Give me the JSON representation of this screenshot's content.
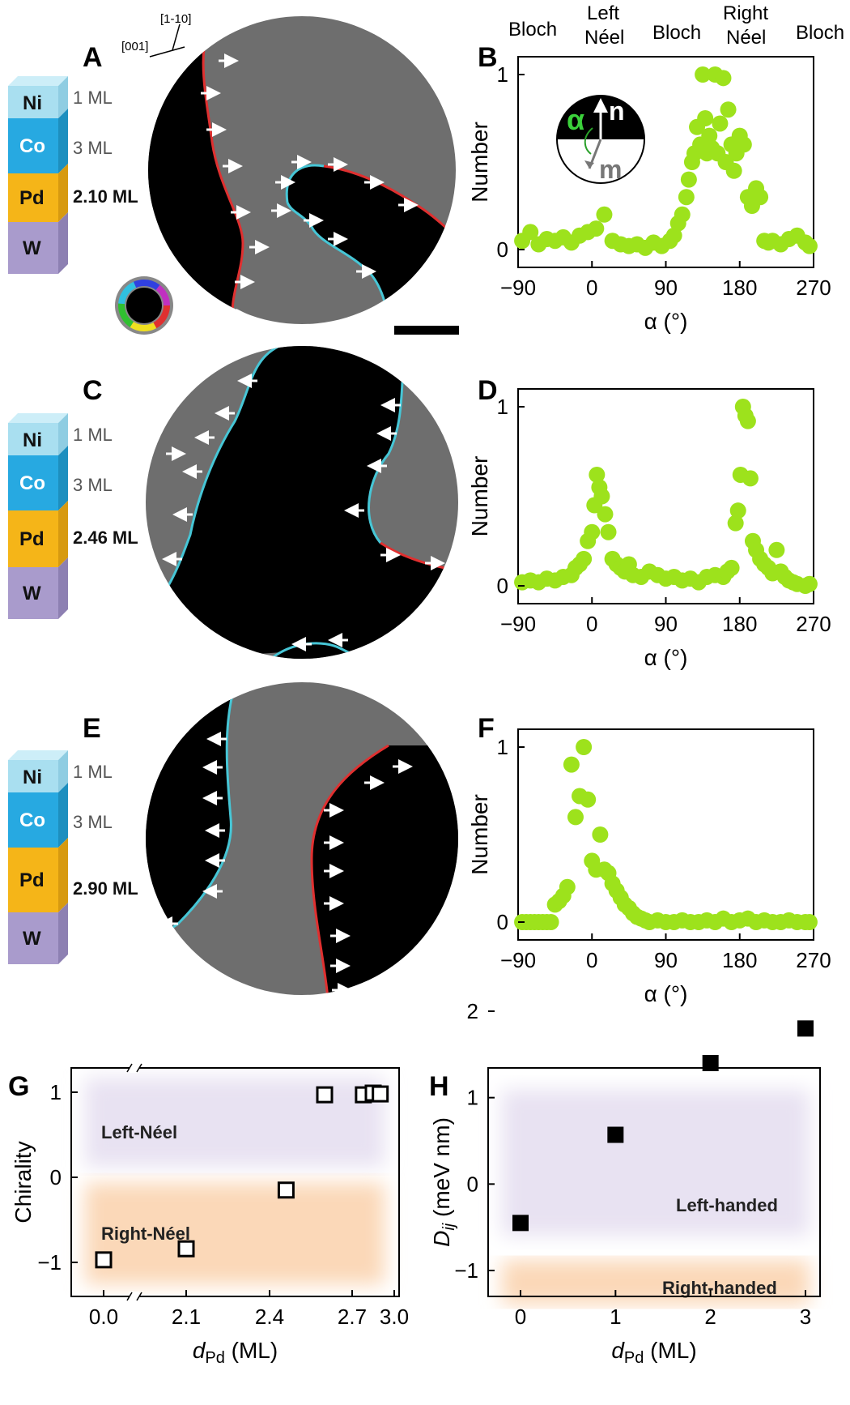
{
  "panels": {
    "A": {
      "letter": "A",
      "pd": "2.10 ML",
      "axis1": "[001]",
      "axis2": "[1-10]"
    },
    "C": {
      "letter": "C",
      "pd": "2.46 ML"
    },
    "E": {
      "letter": "E",
      "pd": "2.90 ML"
    },
    "stack": {
      "ni": "Ni",
      "co": "Co",
      "pd": "Pd",
      "w": "W",
      "ni_ml": "1 ML",
      "co_ml": "3 ML"
    },
    "B": {
      "letter": "B"
    },
    "D": {
      "letter": "D"
    },
    "F": {
      "letter": "F"
    },
    "G": {
      "letter": "G"
    },
    "H": {
      "letter": "H"
    }
  },
  "top_labels": {
    "bloch1": "Bloch",
    "left1": "Left",
    "left2": "Néel",
    "bloch2": "Bloch",
    "right1": "Right",
    "right2": "Néel",
    "bloch3": "Bloch"
  },
  "inset": {
    "alpha": "α",
    "n": "n",
    "m": "m"
  },
  "hist_axes": {
    "ylabel": "Number",
    "xlabel": "α (°)",
    "xticks": [
      "−90",
      "0",
      "90",
      "180",
      "270"
    ],
    "yticks": [
      "0",
      "1"
    ]
  },
  "colors": {
    "green": "#9de21c",
    "cyan": "#46c6d6",
    "red": "#e03030",
    "gray": "#6e6e6e",
    "ni": "#a9dff0",
    "co": "#27a9e1",
    "pd": "#f5b518",
    "w": "#a99bcc",
    "leftband": "#e8e2f2",
    "rightband": "#fbd8b8"
  },
  "chart_data": [
    {
      "type": "scatter",
      "panel": "B",
      "xlabel": "α (°)",
      "ylabel": "Number",
      "xlim": [
        -90,
        270
      ],
      "ylim": [
        0,
        1
      ],
      "x": [
        -85,
        -75,
        -65,
        -55,
        -45,
        -35,
        -25,
        -15,
        -5,
        5,
        15,
        25,
        35,
        45,
        55,
        65,
        75,
        85,
        95,
        100,
        105,
        110,
        115,
        118,
        122,
        125,
        128,
        132,
        135,
        138,
        140,
        143,
        146,
        150,
        153,
        156,
        160,
        163,
        166,
        170,
        173,
        176,
        180,
        185,
        190,
        195,
        200,
        205,
        210,
        215,
        220,
        230,
        240,
        250,
        260,
        265
      ],
      "y": [
        0.05,
        0.1,
        0.03,
        0.06,
        0.05,
        0.07,
        0.04,
        0.08,
        0.1,
        0.12,
        0.2,
        0.05,
        0.03,
        0.02,
        0.03,
        0.01,
        0.04,
        0.02,
        0.05,
        0.08,
        0.15,
        0.2,
        0.3,
        0.4,
        0.5,
        0.55,
        0.7,
        0.6,
        1.0,
        0.75,
        0.55,
        0.65,
        0.58,
        1.0,
        0.55,
        0.72,
        0.98,
        0.5,
        0.8,
        0.6,
        0.45,
        0.55,
        0.65,
        0.6,
        0.3,
        0.25,
        0.35,
        0.3,
        0.05,
        0.04,
        0.05,
        0.03,
        0.06,
        0.08,
        0.04,
        0.02
      ]
    },
    {
      "type": "scatter",
      "panel": "D",
      "xlabel": "α (°)",
      "ylabel": "Number",
      "xlim": [
        -90,
        270
      ],
      "ylim": [
        0,
        1
      ],
      "x": [
        -85,
        -75,
        -65,
        -55,
        -45,
        -35,
        -25,
        -20,
        -15,
        -10,
        -5,
        0,
        3,
        6,
        9,
        12,
        16,
        20,
        25,
        30,
        35,
        40,
        45,
        50,
        60,
        70,
        80,
        90,
        100,
        110,
        120,
        130,
        140,
        150,
        160,
        165,
        170,
        175,
        178,
        181,
        184,
        187,
        190,
        193,
        196,
        200,
        205,
        210,
        215,
        220,
        225,
        230,
        235,
        240,
        245,
        250,
        260,
        265
      ],
      "y": [
        0.02,
        0.03,
        0.02,
        0.04,
        0.03,
        0.05,
        0.06,
        0.1,
        0.12,
        0.15,
        0.25,
        0.3,
        0.45,
        0.62,
        0.55,
        0.5,
        0.4,
        0.3,
        0.15,
        0.12,
        0.1,
        0.08,
        0.12,
        0.06,
        0.05,
        0.08,
        0.06,
        0.04,
        0.05,
        0.03,
        0.04,
        0.02,
        0.05,
        0.06,
        0.05,
        0.08,
        0.1,
        0.35,
        0.42,
        0.62,
        1.0,
        0.95,
        0.92,
        0.6,
        0.25,
        0.2,
        0.15,
        0.12,
        0.1,
        0.07,
        0.2,
        0.08,
        0.05,
        0.03,
        0.02,
        0.01,
        0.0,
        0.01
      ]
    },
    {
      "type": "scatter",
      "panel": "F",
      "xlabel": "α (°)",
      "ylabel": "Number",
      "xlim": [
        -90,
        270
      ],
      "ylim": [
        0,
        1
      ],
      "x": [
        -85,
        -80,
        -75,
        -70,
        -65,
        -60,
        -55,
        -50,
        -45,
        -40,
        -35,
        -30,
        -25,
        -20,
        -15,
        -10,
        -5,
        0,
        5,
        10,
        15,
        20,
        25,
        30,
        35,
        40,
        45,
        50,
        55,
        60,
        65,
        70,
        80,
        90,
        100,
        110,
        120,
        130,
        140,
        150,
        160,
        170,
        180,
        190,
        200,
        210,
        220,
        230,
        240,
        250,
        260,
        265
      ],
      "y": [
        0,
        0,
        0,
        0,
        0,
        0,
        0,
        0,
        0.1,
        0.12,
        0.15,
        0.2,
        0.9,
        0.6,
        0.72,
        1.0,
        0.7,
        0.35,
        0.3,
        0.5,
        0.3,
        0.28,
        0.22,
        0.18,
        0.14,
        0.1,
        0.08,
        0.05,
        0.03,
        0.02,
        0.01,
        0.0,
        0.01,
        0.0,
        0.0,
        0.01,
        0.0,
        0.0,
        0.01,
        0.0,
        0.02,
        0.0,
        0.01,
        0.02,
        0.0,
        0.01,
        0.0,
        0.0,
        0.01,
        0.0,
        0.0,
        0.0
      ]
    },
    {
      "type": "scatter",
      "panel": "G",
      "xlabel": "dPd (ML)",
      "ylabel": "Chirality",
      "ylim": [
        -1,
        1
      ],
      "xticks": [
        "0.0",
        "2.1",
        "2.4",
        "2.7",
        "3.0"
      ],
      "yticks": [
        "−1",
        "0",
        "1"
      ],
      "x": [
        0.0,
        2.1,
        2.46,
        2.6,
        2.78,
        2.85,
        2.9
      ],
      "y": [
        -0.97,
        -0.84,
        -0.15,
        0.97,
        0.97,
        0.99,
        0.98
      ],
      "regions": [
        "Left-Néel",
        "Right-Néel"
      ]
    },
    {
      "type": "scatter",
      "panel": "H",
      "xlabel": "dPd (ML)",
      "ylabel": "Dij (meV nm)",
      "xlim": [
        0,
        3
      ],
      "ylim": [
        -1,
        2
      ],
      "xticks": [
        "0",
        "1",
        "2",
        "3"
      ],
      "yticks": [
        "−1",
        "0",
        "1",
        "2"
      ],
      "x": [
        0,
        1,
        2,
        3
      ],
      "y": [
        -0.45,
        0.57,
        1.4,
        1.8
      ],
      "regions": [
        "Left-handed",
        "Right-handed"
      ]
    }
  ]
}
